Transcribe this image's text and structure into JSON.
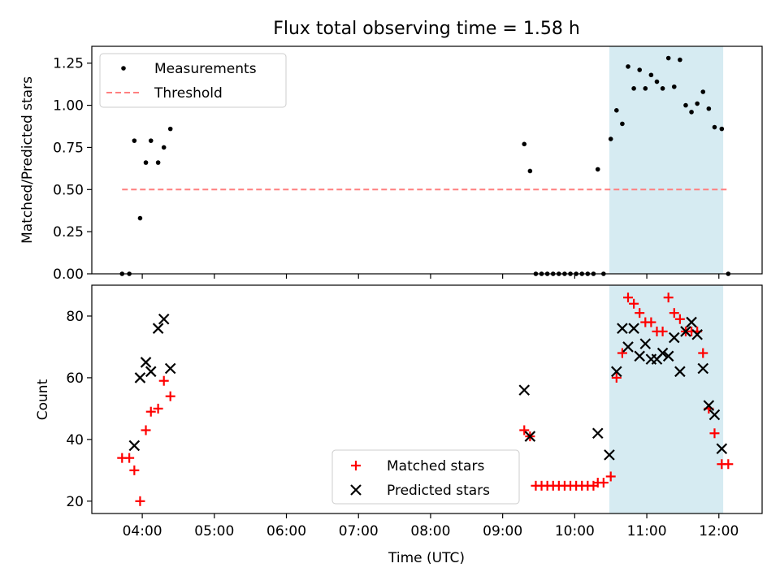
{
  "chart_data": [
    {
      "type": "scatter",
      "title": "Flux total observing time = 1.58 h",
      "xlabel": "",
      "ylabel": "Matched/Predicted stars",
      "xlim": [
        3.3,
        12.6
      ],
      "ylim": [
        0,
        1.35
      ],
      "yticks": [
        "0.00",
        "0.25",
        "0.50",
        "0.75",
        "1.00",
        "1.25"
      ],
      "grid": false,
      "legend_position": "top-left",
      "highlight_span": [
        10.48,
        12.06
      ],
      "series": [
        {
          "name": "Measurements",
          "marker": "dot",
          "color": "#000000",
          "x": [
            3.72,
            3.82,
            3.89,
            3.97,
            4.05,
            4.12,
            4.22,
            4.3,
            4.39,
            9.3,
            9.38,
            9.46,
            9.54,
            9.62,
            9.7,
            9.78,
            9.86,
            9.94,
            10.02,
            10.1,
            10.18,
            10.26,
            10.32,
            10.4,
            10.5,
            10.58,
            10.66,
            10.74,
            10.82,
            10.9,
            10.98,
            11.06,
            11.14,
            11.22,
            11.3,
            11.38,
            11.46,
            11.54,
            11.62,
            11.7,
            11.78,
            11.86,
            11.94,
            12.04,
            12.13
          ],
          "y": [
            0.0,
            0.0,
            0.79,
            0.33,
            0.66,
            0.79,
            0.66,
            0.75,
            0.86,
            0.77,
            0.61,
            0.0,
            0.0,
            0.0,
            0.0,
            0.0,
            0.0,
            0.0,
            0.0,
            0.0,
            0.0,
            0.0,
            0.62,
            0.0,
            0.8,
            0.97,
            0.89,
            1.23,
            1.1,
            1.21,
            1.1,
            1.18,
            1.14,
            1.1,
            1.28,
            1.11,
            1.27,
            1.0,
            0.96,
            1.01,
            1.08,
            0.98,
            0.87,
            0.86,
            0.0
          ]
        },
        {
          "name": "Threshold",
          "style": "dashed",
          "color": "#ff7f7f",
          "x": [
            3.72,
            12.13
          ],
          "y": [
            0.5,
            0.5
          ]
        }
      ]
    },
    {
      "type": "scatter",
      "title": "",
      "xlabel": "Time (UTC)",
      "ylabel": "Count",
      "xlim": [
        3.3,
        12.6
      ],
      "ylim": [
        16,
        90
      ],
      "yticks": [
        "20",
        "40",
        "60",
        "80"
      ],
      "xticks": [
        "04:00",
        "05:00",
        "06:00",
        "07:00",
        "08:00",
        "09:00",
        "10:00",
        "11:00",
        "12:00"
      ],
      "grid": false,
      "legend_position": "lower-center",
      "highlight_span": [
        10.48,
        12.06
      ],
      "series": [
        {
          "name": "Matched stars",
          "marker": "plus",
          "color": "#ff0000",
          "x": [
            3.72,
            3.82,
            3.89,
            3.97,
            4.05,
            4.12,
            4.22,
            4.3,
            4.39,
            9.3,
            9.38,
            9.46,
            9.54,
            9.62,
            9.7,
            9.78,
            9.86,
            9.94,
            10.02,
            10.1,
            10.18,
            10.26,
            10.32,
            10.4,
            10.5,
            10.58,
            10.66,
            10.74,
            10.82,
            10.9,
            10.98,
            11.06,
            11.14,
            11.22,
            11.3,
            11.38,
            11.46,
            11.54,
            11.62,
            11.7,
            11.78,
            11.86,
            11.94,
            12.04,
            12.13
          ],
          "y": [
            34,
            34,
            30,
            20,
            43,
            49,
            50,
            59,
            54,
            43,
            41,
            25,
            25,
            25,
            25,
            25,
            25,
            25,
            25,
            25,
            25,
            25,
            26,
            26,
            28,
            60,
            68,
            86,
            84,
            81,
            78,
            78,
            75,
            75,
            86,
            81,
            79,
            75,
            75,
            75,
            68,
            50,
            42,
            32,
            32
          ]
        },
        {
          "name": "Predicted stars",
          "marker": "x",
          "color": "#000000",
          "x": [
            3.89,
            3.97,
            4.05,
            4.12,
            4.22,
            4.3,
            4.39,
            9.3,
            9.38,
            10.32,
            10.48,
            10.58,
            10.66,
            10.74,
            10.82,
            10.9,
            10.98,
            11.06,
            11.14,
            11.22,
            11.3,
            11.38,
            11.46,
            11.54,
            11.62,
            11.7,
            11.78,
            11.86,
            11.94,
            12.04
          ],
          "y": [
            38,
            60,
            65,
            62,
            76,
            79,
            63,
            56,
            41,
            42,
            35,
            62,
            76,
            70,
            76,
            67,
            71,
            66,
            66,
            68,
            67,
            73,
            62,
            75,
            78,
            74,
            63,
            51,
            48,
            37
          ]
        }
      ]
    }
  ]
}
